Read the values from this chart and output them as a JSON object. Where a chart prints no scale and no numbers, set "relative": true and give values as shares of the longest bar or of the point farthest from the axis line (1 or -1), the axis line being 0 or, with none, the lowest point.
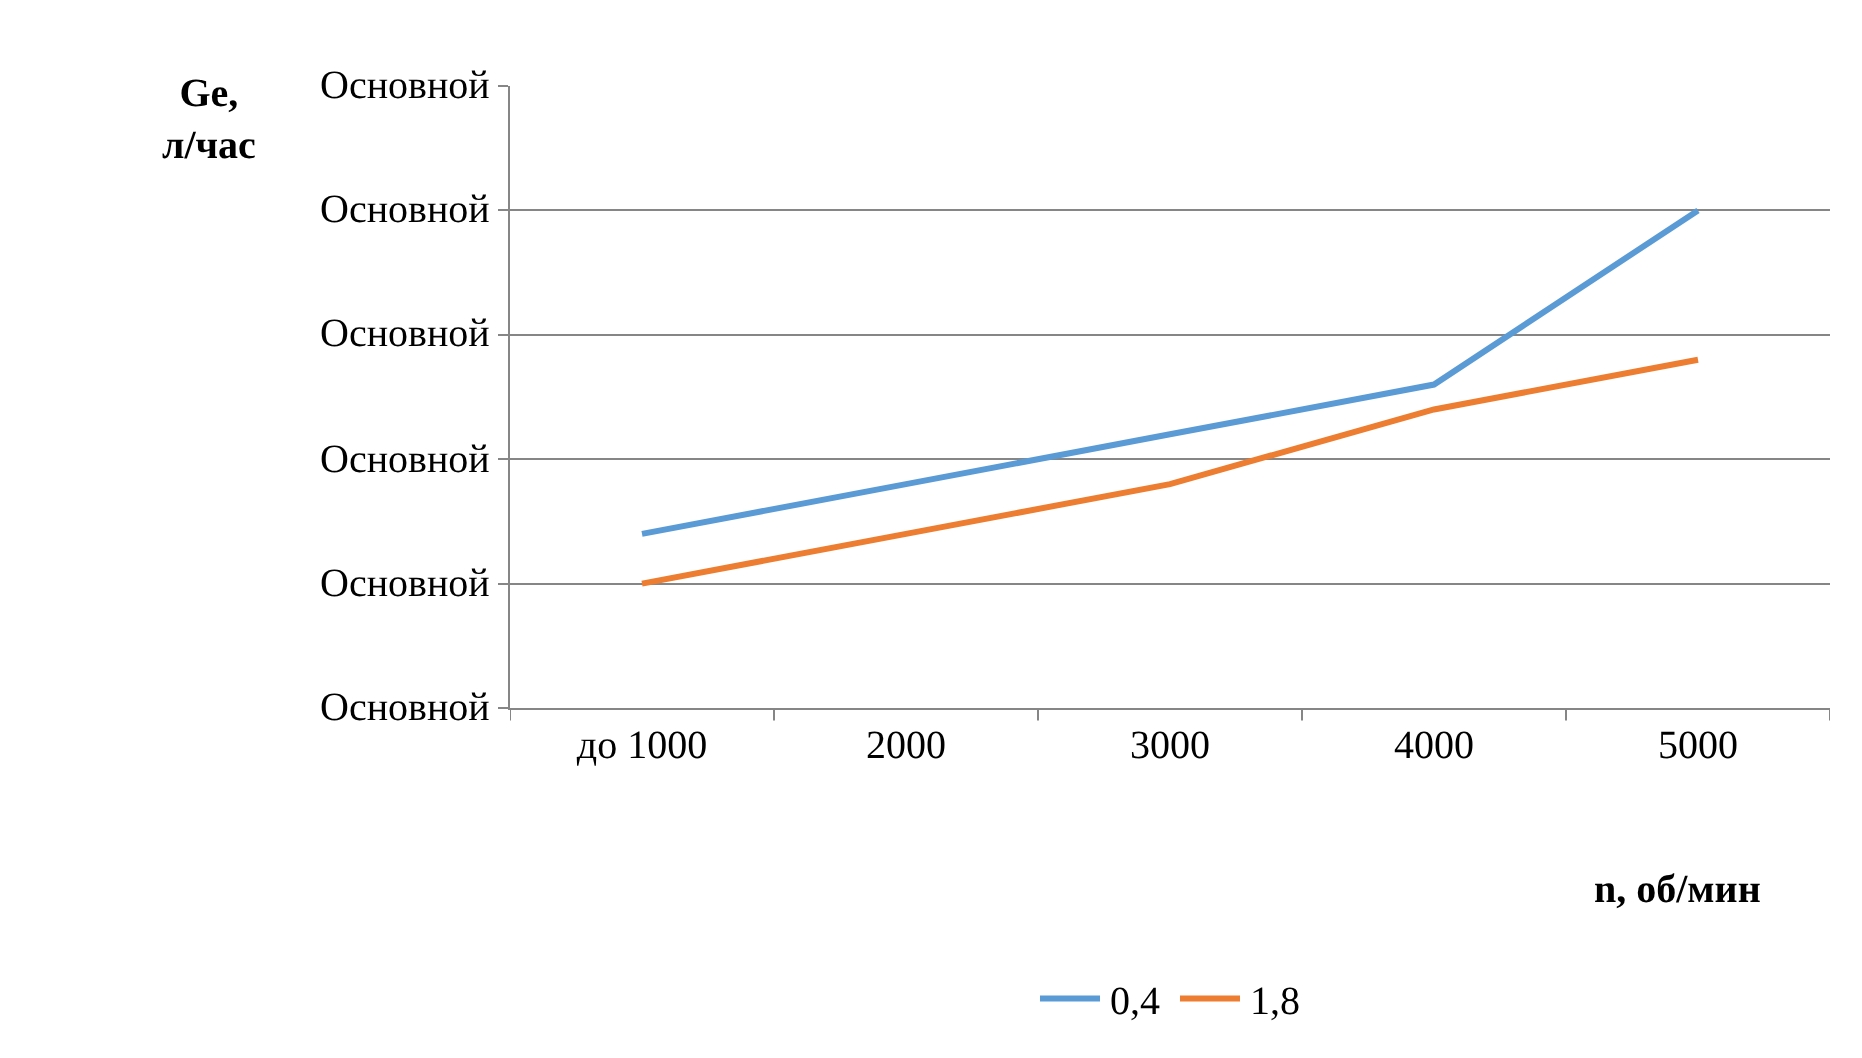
{
  "chart_data": {
    "type": "line",
    "relative": true,
    "xlabel": "n, об/мин",
    "categories": [
      "до 1000",
      "2000",
      "3000",
      "4000",
      "5000"
    ],
    "series": [
      {
        "name": "0,4",
        "color": "#5b9bd5",
        "values": [
          0.35,
          0.45,
          0.55,
          0.65,
          1.0
        ]
      },
      {
        "name": "1,8",
        "color": "#ed7d31",
        "values": [
          0.25,
          0.35,
          0.45,
          0.6,
          0.7
        ]
      }
    ],
    "annotations": [
      "Ge,\nл/час",
      "Основной",
      "Основной",
      "Основной",
      "Основной",
      "Основной",
      "Основной"
    ],
    "grid": "y",
    "legend": "bottom",
    "marker": "none",
    "line_style": "solid"
  }
}
